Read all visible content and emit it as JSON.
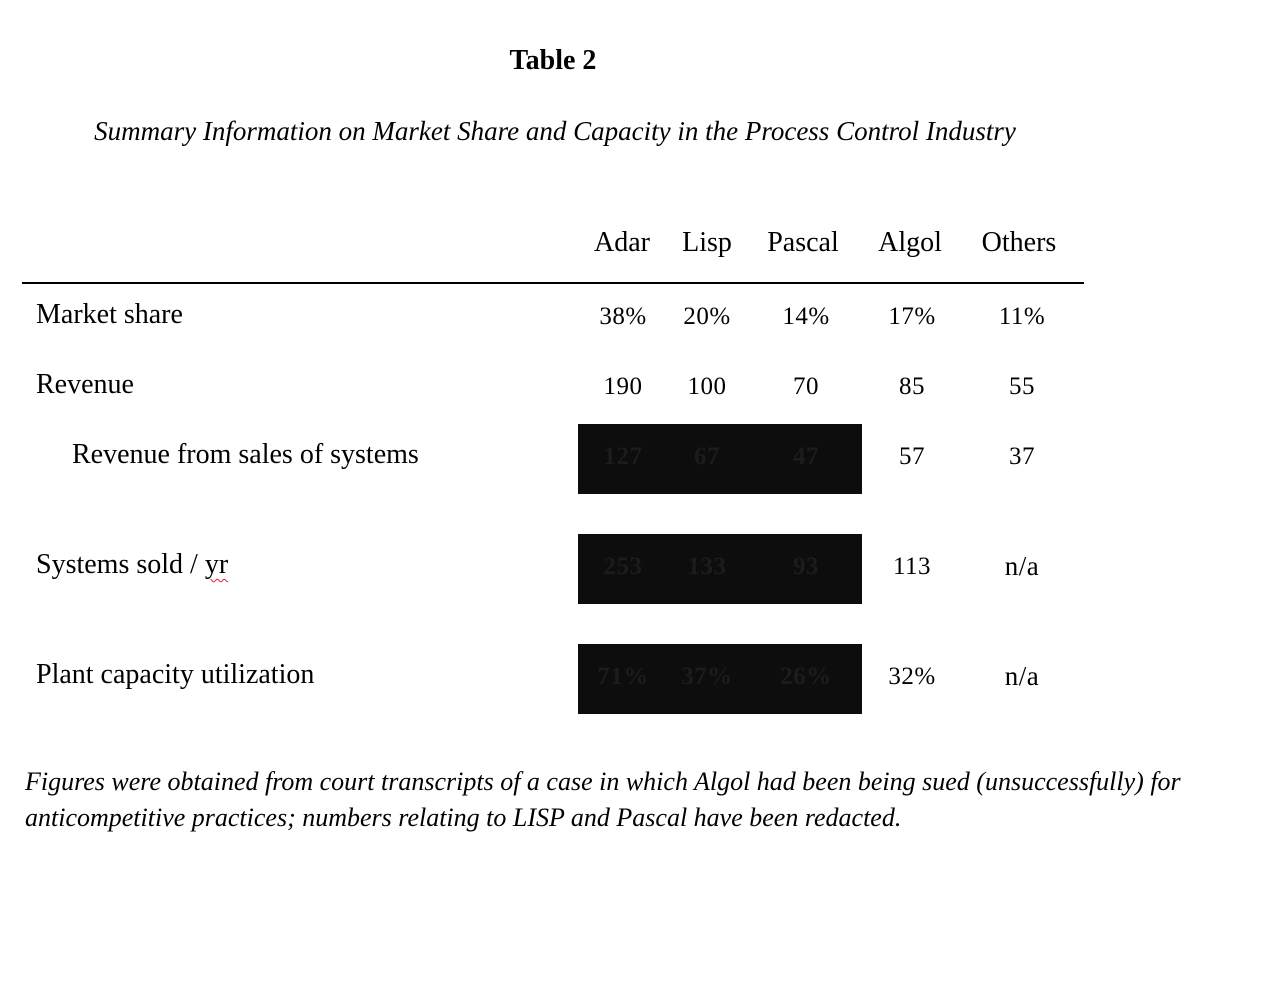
{
  "title": "Table 2",
  "subtitle": "Summary Information on Market Share and Capacity in the Process Control Industry",
  "columns": [
    "Adar",
    "Lisp",
    "Pascal",
    "Algol",
    "Others"
  ],
  "rows": [
    {
      "label": "Market share",
      "values": [
        "38%",
        "20%",
        "14%",
        "17%",
        "11%"
      ],
      "redacted": [
        false,
        false,
        false,
        false,
        false
      ]
    },
    {
      "label": "Revenue",
      "values": [
        "190",
        "100",
        "70",
        "85",
        "55"
      ],
      "redacted": [
        false,
        false,
        false,
        false,
        false
      ]
    },
    {
      "label": "Revenue from sales of systems",
      "values": [
        "127",
        "67",
        "47",
        "57",
        "37"
      ],
      "redacted": [
        true,
        true,
        true,
        false,
        false
      ]
    },
    {
      "label_main": "Systems sold / ",
      "label_flagged": "yr",
      "values": [
        "253",
        "133",
        "93",
        "113",
        "n/a"
      ],
      "redacted": [
        true,
        true,
        true,
        false,
        false
      ]
    },
    {
      "label": "Plant capacity utilization",
      "values": [
        "71%",
        "37%",
        "26%",
        "32%",
        "n/a"
      ],
      "redacted": [
        true,
        true,
        true,
        false,
        false
      ]
    }
  ],
  "footnote": "Figures were obtained from court transcripts of a case in which Algol had been being sued (unsuccessfully) for anticompetitive practices; numbers relating to LISP and Pascal have been redacted.",
  "colors": {
    "redaction_fill": "#0d0d0d",
    "spellcheck_underline": "#e0202a"
  }
}
